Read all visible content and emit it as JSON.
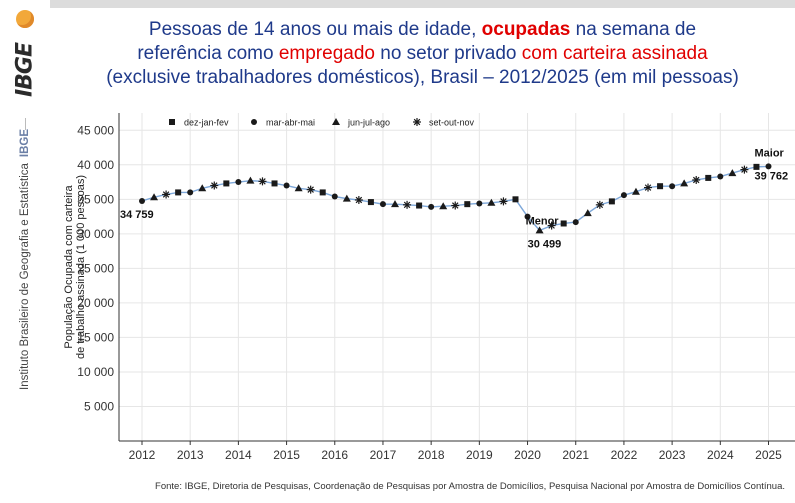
{
  "logo": {
    "text": "IBGE"
  },
  "side_caption": {
    "text": "Instituto Brasileiro de Geografia e Estatística",
    "abbr": "IBGE"
  },
  "title": {
    "line1_a": "Pessoas de 14 anos ou mais de idade, ",
    "line1_b": "ocupadas",
    "line1_c": " na semana de",
    "line2_a": "referência como ",
    "line2_b": "empregado",
    "line2_c": " no setor privado ",
    "line2_d": "com carteira assinada",
    "line3": "(exclusive trabalhadores domésticos), Brasil – 2012/2025 (em mil pessoas)"
  },
  "source": "Fonte: IBGE, Diretoria de Pesquisas, Coordenação de Pesquisas por Amostra de Domicílios, Pesquisa Nacional por Amostra de Domicílios Contínua.",
  "colors": {
    "line": "#7da7d9",
    "marker": "#1a1a1a",
    "grid": "#e6e6e6",
    "title": "#1f3a8a",
    "highlight": "#e00000"
  },
  "chart_data": {
    "type": "line",
    "title": "",
    "xlabel": "",
    "ylabel": "População Ocupada com carteira de trabalho assinada (1 000 pessoas)",
    "ylim": [
      0,
      47500
    ],
    "yticks": [
      5000,
      10000,
      15000,
      20000,
      25000,
      30000,
      35000,
      40000,
      45000
    ],
    "ytick_labels": [
      "5 000",
      "10 000",
      "15 000",
      "20 000",
      "25 000",
      "30 000",
      "35 000",
      "40 000",
      "45 000"
    ],
    "xticks": [
      "2012",
      "2013",
      "2014",
      "2015",
      "2016",
      "2017",
      "2018",
      "2019",
      "2020",
      "2021",
      "2022",
      "2023",
      "2024",
      "2025"
    ],
    "grid": true,
    "legend_position": "top-left",
    "legend": [
      {
        "label": "dez-jan-fev",
        "marker": "square"
      },
      {
        "label": "mar-abr-mai",
        "marker": "circle"
      },
      {
        "label": "jun-jul-ago",
        "marker": "triangle"
      },
      {
        "label": "set-out-nov",
        "marker": "asterisk"
      }
    ],
    "x": [
      "2012-mar",
      "2012-jun",
      "2012-set",
      "2012-dez",
      "2013-mar",
      "2013-jun",
      "2013-set",
      "2013-dez",
      "2014-mar",
      "2014-jun",
      "2014-set",
      "2014-dez",
      "2015-mar",
      "2015-jun",
      "2015-set",
      "2015-dez",
      "2016-mar",
      "2016-jun",
      "2016-set",
      "2016-dez",
      "2017-mar",
      "2017-jun",
      "2017-set",
      "2017-dez",
      "2018-mar",
      "2018-jun",
      "2018-set",
      "2018-dez",
      "2019-mar",
      "2019-jun",
      "2019-set",
      "2019-dez",
      "2020-mar",
      "2020-jun",
      "2020-set",
      "2020-dez",
      "2021-mar",
      "2021-jun",
      "2021-set",
      "2021-dez",
      "2022-mar",
      "2022-jun",
      "2022-set",
      "2022-dez",
      "2023-mar",
      "2023-jun",
      "2023-set",
      "2023-dez",
      "2024-mar",
      "2024-jun",
      "2024-set",
      "2024-dez",
      "2025-mar"
    ],
    "marker_types": [
      "circle",
      "triangle",
      "asterisk",
      "square",
      "circle",
      "triangle",
      "asterisk",
      "square",
      "circle",
      "triangle",
      "asterisk",
      "square",
      "circle",
      "triangle",
      "asterisk",
      "square",
      "circle",
      "triangle",
      "asterisk",
      "square",
      "circle",
      "triangle",
      "asterisk",
      "square",
      "circle",
      "triangle",
      "asterisk",
      "square",
      "circle",
      "triangle",
      "asterisk",
      "square",
      "circle",
      "triangle",
      "asterisk",
      "square",
      "circle",
      "triangle",
      "asterisk",
      "square",
      "circle",
      "triangle",
      "asterisk",
      "square",
      "circle",
      "triangle",
      "asterisk",
      "square",
      "circle",
      "triangle",
      "asterisk",
      "square",
      "circle"
    ],
    "values": [
      34759,
      35300,
      35700,
      36000,
      36000,
      36600,
      37000,
      37300,
      37500,
      37700,
      37600,
      37300,
      37000,
      36600,
      36400,
      36000,
      35400,
      35100,
      34900,
      34600,
      34300,
      34300,
      34200,
      34100,
      33900,
      34000,
      34100,
      34300,
      34400,
      34500,
      34700,
      35000,
      32500,
      30499,
      31200,
      31500,
      31700,
      33000,
      34200,
      34700,
      35600,
      36100,
      36700,
      36900,
      36900,
      37300,
      37800,
      38100,
      38300,
      38800,
      39300,
      39700,
      39762
    ],
    "annotations": [
      {
        "label": "34 759",
        "index": 0
      },
      {
        "label": "Menor",
        "index": 33
      },
      {
        "label": "30 499",
        "index": 33
      },
      {
        "label": "Maior",
        "index": 52
      },
      {
        "label": "39 762",
        "index": 52
      }
    ]
  }
}
